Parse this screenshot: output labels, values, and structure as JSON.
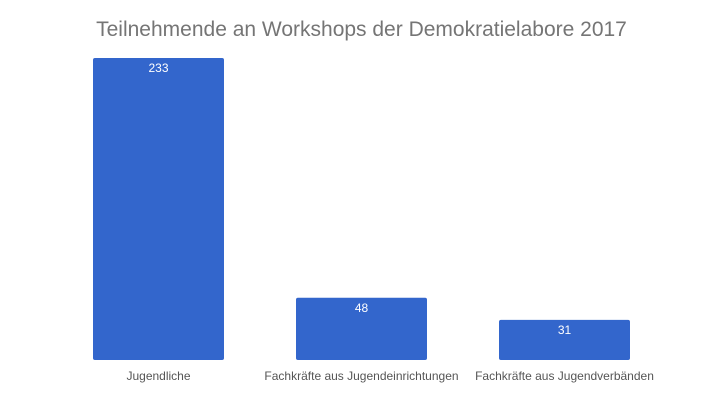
{
  "chart_data": {
    "type": "bar",
    "title": "Teilnehmende an Workshops der Demokratielabore 2017",
    "categories": [
      "Jugendliche",
      "Fachkräfte aus Jugendeinrichtungen",
      "Fachkräfte aus Jugendverbänden"
    ],
    "values": [
      233,
      48,
      31
    ],
    "xlabel": "",
    "ylabel": "",
    "ylim": [
      0,
      233
    ],
    "grid": false,
    "legend": "none",
    "bar_color": "#3366cc",
    "data_labels": true
  }
}
